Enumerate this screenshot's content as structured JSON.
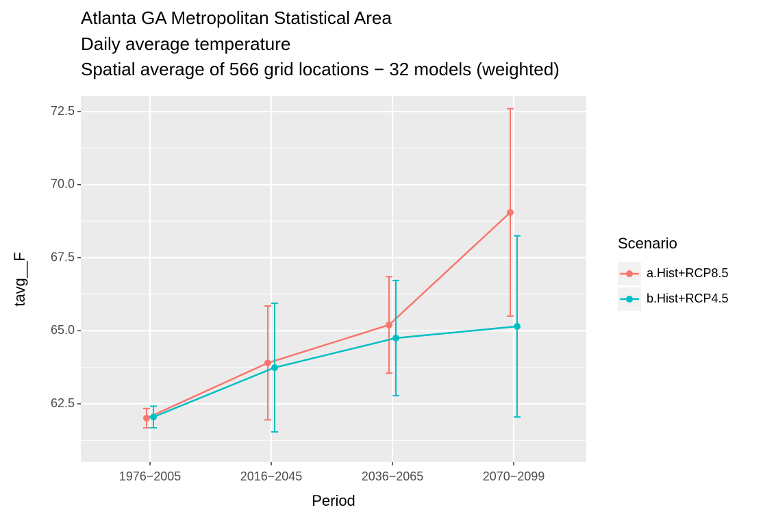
{
  "chart_data": {
    "type": "line",
    "title": [
      "Atlanta GA Metropolitan Statistical Area",
      "Daily average temperature",
      "Spatial average of 566 grid locations − 32 models (weighted)"
    ],
    "x_label": "Period",
    "y_label": "tavg__F",
    "categories": [
      "1976−2005",
      "2016−2045",
      "2036−2065",
      "2070−2099"
    ],
    "series": [
      {
        "name": "a.Hist+RCP8.5",
        "color": "#F8766D",
        "values": [
          62.01,
          63.9,
          65.2,
          69.05
        ],
        "errors": [
          0.33,
          1.95,
          1.65,
          3.55
        ]
      },
      {
        "name": "b.Hist+RCP4.5",
        "color": "#00BFC4",
        "values": [
          62.05,
          63.74,
          64.75,
          65.15
        ],
        "errors": [
          0.37,
          2.2,
          1.97,
          3.1
        ]
      }
    ],
    "ylim": [
      60.51,
      73.04
    ],
    "yticks": [
      62.5,
      {
        "value": 65,
        "label": "65.0"
      },
      67.5,
      {
        "value": 70,
        "label": "70.0"
      },
      72.5
    ],
    "grid": true,
    "legend_title": "Scenario",
    "legend": "right"
  }
}
